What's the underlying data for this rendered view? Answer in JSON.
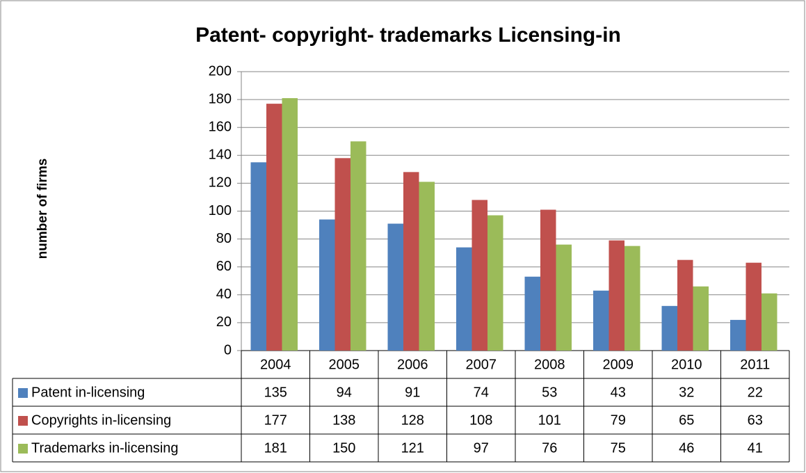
{
  "chart_data": {
    "type": "bar",
    "title": "Patent- copyright- trademarks Licensing-in",
    "y_label": "number of firms",
    "categories": [
      "2004",
      "2005",
      "2006",
      "2007",
      "2008",
      "2009",
      "2010",
      "2011"
    ],
    "series": [
      {
        "name": "Patent in-licensing",
        "color": "#4f81bd",
        "values": [
          135,
          94,
          91,
          74,
          53,
          43,
          32,
          22
        ]
      },
      {
        "name": "Copyrights in-licensing",
        "color": "#c0504d",
        "values": [
          177,
          138,
          128,
          108,
          101,
          79,
          65,
          63
        ]
      },
      {
        "name": "Trademarks in-licensing",
        "color": "#9bbb59",
        "values": [
          181,
          150,
          121,
          97,
          76,
          75,
          46,
          41
        ]
      }
    ],
    "ylim": [
      0,
      200
    ],
    "yticks": [
      0,
      20,
      40,
      60,
      80,
      100,
      120,
      140,
      160,
      180,
      200
    ],
    "grid": true
  }
}
